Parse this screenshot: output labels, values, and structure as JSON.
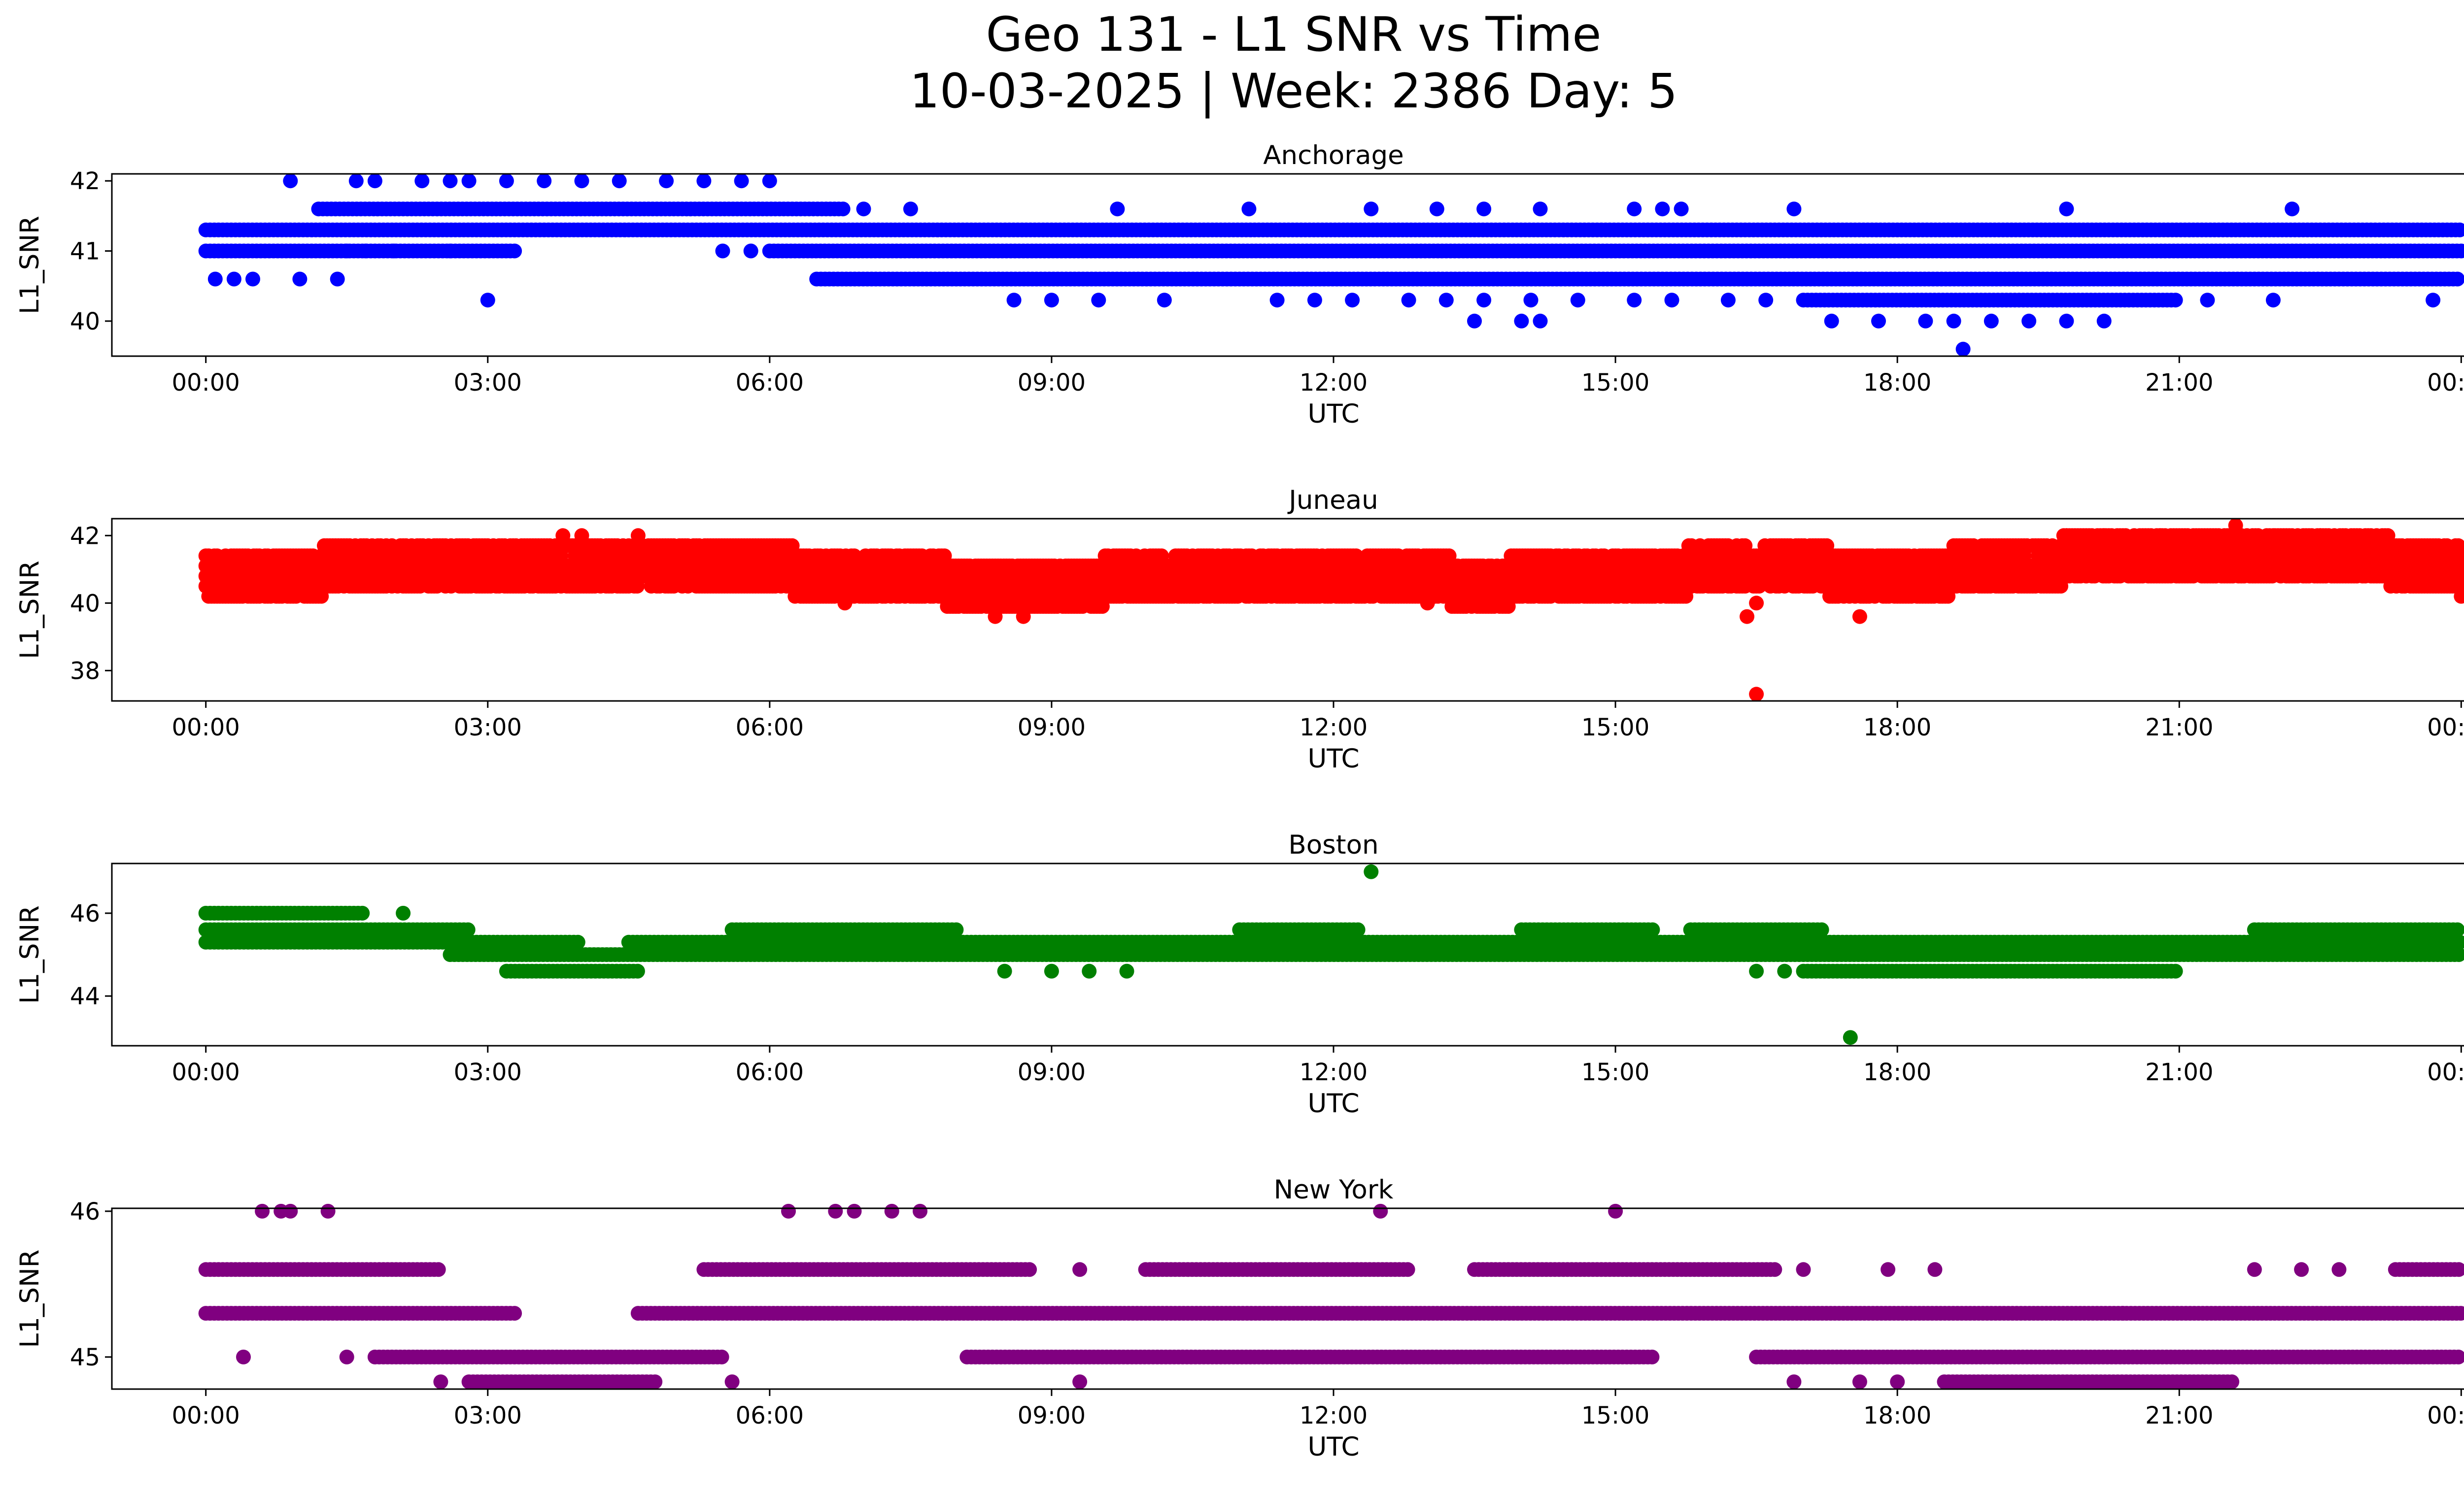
{
  "figure": {
    "title_line1": "Geo 131 - L1 SNR vs Time",
    "title_line2": "10-03-2025 | Week: 2386 Day: 5"
  },
  "chart_data": [
    {
      "type": "scatter",
      "title": "Anchorage",
      "xlabel": "UTC",
      "ylabel": "L1_SNR",
      "color": "#0000ff",
      "xlim": [
        -1.0,
        25.0
      ],
      "ylim": [
        39.5,
        42.1
      ],
      "yticks": [
        40,
        41,
        42
      ],
      "ytick_labels": [
        "40",
        "41",
        "42"
      ],
      "xticks": [
        0,
        3,
        6,
        9,
        12,
        15,
        18,
        21,
        24
      ],
      "xtick_labels": [
        "00:00",
        "03:00",
        "06:00",
        "09:00",
        "12:00",
        "15:00",
        "18:00",
        "21:00",
        "00:00"
      ],
      "bands": [
        {
          "y": 41.3,
          "x0": 0.0,
          "x1": 24.0
        },
        {
          "y": 41.0,
          "x0": 0.0,
          "x1": 3.3
        },
        {
          "y": 41.6,
          "x0": 1.2,
          "x1": 6.8
        },
        {
          "y": 41.0,
          "x0": 6.0,
          "x1": 24.0
        },
        {
          "y": 40.6,
          "x0": 6.5,
          "x1": 24.0
        },
        {
          "y": 40.3,
          "x0": 17.0,
          "x1": 21.0
        }
      ],
      "points": [
        [
          0.9,
          42.0
        ],
        [
          1.6,
          42.0
        ],
        [
          1.8,
          42.0
        ],
        [
          2.3,
          42.0
        ],
        [
          2.6,
          42.0
        ],
        [
          2.8,
          42.0
        ],
        [
          3.2,
          42.0
        ],
        [
          3.6,
          42.0
        ],
        [
          4.0,
          42.0
        ],
        [
          4.4,
          42.0
        ],
        [
          4.9,
          42.0
        ],
        [
          5.3,
          42.0
        ],
        [
          5.7,
          42.0
        ],
        [
          6.0,
          42.0
        ],
        [
          0.1,
          40.6
        ],
        [
          0.3,
          40.6
        ],
        [
          0.5,
          40.6
        ],
        [
          1.0,
          40.6
        ],
        [
          1.4,
          40.6
        ],
        [
          3.0,
          40.3
        ],
        [
          1.5,
          41.0
        ],
        [
          1.7,
          41.0
        ],
        [
          2.0,
          41.0
        ],
        [
          2.6,
          41.0
        ],
        [
          5.5,
          41.0
        ],
        [
          5.8,
          41.0
        ],
        [
          7.0,
          41.6
        ],
        [
          7.5,
          41.6
        ],
        [
          9.7,
          41.6
        ],
        [
          11.1,
          41.6
        ],
        [
          12.4,
          41.6
        ],
        [
          13.1,
          41.6
        ],
        [
          13.6,
          41.6
        ],
        [
          14.2,
          41.6
        ],
        [
          15.2,
          41.6
        ],
        [
          15.5,
          41.6
        ],
        [
          15.7,
          41.6
        ],
        [
          16.9,
          41.6
        ],
        [
          19.8,
          41.6
        ],
        [
          22.2,
          41.6
        ],
        [
          8.6,
          40.3
        ],
        [
          9.0,
          40.3
        ],
        [
          9.5,
          40.3
        ],
        [
          10.2,
          40.3
        ],
        [
          11.4,
          40.3
        ],
        [
          11.8,
          40.3
        ],
        [
          12.2,
          40.3
        ],
        [
          12.8,
          40.3
        ],
        [
          13.2,
          40.3
        ],
        [
          13.6,
          40.3
        ],
        [
          14.1,
          40.3
        ],
        [
          14.6,
          40.3
        ],
        [
          15.2,
          40.3
        ],
        [
          15.6,
          40.3
        ],
        [
          16.2,
          40.3
        ],
        [
          16.6,
          40.3
        ],
        [
          21.3,
          40.3
        ],
        [
          22.0,
          40.3
        ],
        [
          23.7,
          40.3
        ],
        [
          13.5,
          40.0
        ],
        [
          14.0,
          40.0
        ],
        [
          14.2,
          40.0
        ],
        [
          17.3,
          40.0
        ],
        [
          17.8,
          40.0
        ],
        [
          18.3,
          40.0
        ],
        [
          18.6,
          40.0
        ],
        [
          19.0,
          40.0
        ],
        [
          19.4,
          40.0
        ],
        [
          19.8,
          40.0
        ],
        [
          20.2,
          40.0
        ],
        [
          18.7,
          39.6
        ]
      ]
    },
    {
      "type": "scatter",
      "title": "Juneau",
      "xlabel": "UTC",
      "ylabel": "L1_SNR",
      "color": "#ff0000",
      "xlim": [
        -1.0,
        25.0
      ],
      "ylim": [
        37.1,
        42.5
      ],
      "yticks": [
        38,
        40,
        42
      ],
      "ytick_labels": [
        "38",
        "40",
        "42"
      ],
      "xticks": [
        0,
        3,
        6,
        9,
        12,
        15,
        18,
        21,
        24
      ],
      "xtick_labels": [
        "00:00",
        "03:00",
        "06:00",
        "09:00",
        "12:00",
        "15:00",
        "18:00",
        "21:00",
        "00:00"
      ],
      "segments": [
        [
          0.0,
          40.7
        ],
        [
          1.5,
          41.0
        ],
        [
          3.0,
          41.2
        ],
        [
          4.5,
          41.2
        ],
        [
          6.0,
          41.0
        ],
        [
          7.5,
          40.7
        ],
        [
          9.0,
          40.5
        ],
        [
          10.5,
          40.9
        ],
        [
          12.0,
          40.9
        ],
        [
          13.5,
          40.6
        ],
        [
          15.0,
          40.8
        ],
        [
          16.5,
          41.1
        ],
        [
          18.0,
          40.8
        ],
        [
          19.5,
          41.2
        ],
        [
          21.0,
          41.5
        ],
        [
          22.5,
          41.5
        ],
        [
          24.0,
          41.0
        ]
      ],
      "points": [
        [
          3.8,
          42.0
        ],
        [
          4.0,
          42.0
        ],
        [
          4.6,
          42.0
        ],
        [
          19.8,
          42.0
        ],
        [
          20.2,
          42.0
        ],
        [
          20.8,
          42.0
        ],
        [
          21.6,
          42.3
        ],
        [
          22.0,
          42.0
        ],
        [
          22.5,
          42.0
        ],
        [
          16.4,
          39.6
        ],
        [
          16.5,
          40.0
        ],
        [
          17.6,
          39.6
        ],
        [
          8.4,
          39.6
        ],
        [
          8.7,
          39.6
        ],
        [
          6.8,
          40.0
        ],
        [
          9.5,
          40.0
        ],
        [
          13.0,
          40.0
        ],
        [
          13.4,
          40.0
        ],
        [
          16.5,
          37.3
        ]
      ]
    },
    {
      "type": "scatter",
      "title": "Boston",
      "xlabel": "UTC",
      "ylabel": "L1_SNR",
      "color": "#008000",
      "xlim": [
        -1.0,
        25.0
      ],
      "ylim": [
        42.8,
        47.2
      ],
      "yticks": [
        44,
        46
      ],
      "ytick_labels": [
        "44",
        "46"
      ],
      "xticks": [
        0,
        3,
        6,
        9,
        12,
        15,
        18,
        21,
        24
      ],
      "xtick_labels": [
        "00:00",
        "03:00",
        "06:00",
        "09:00",
        "12:00",
        "15:00",
        "18:00",
        "21:00",
        "00:00"
      ],
      "bands": [
        {
          "y": 46.0,
          "x0": 0.0,
          "x1": 1.7
        },
        {
          "y": 45.6,
          "x0": 0.0,
          "x1": 2.8
        },
        {
          "y": 45.3,
          "x0": 0.0,
          "x1": 4.0
        },
        {
          "y": 45.0,
          "x0": 2.6,
          "x1": 24.0
        },
        {
          "y": 45.3,
          "x0": 4.5,
          "x1": 24.0
        },
        {
          "y": 44.6,
          "x0": 3.2,
          "x1": 4.6
        },
        {
          "y": 45.6,
          "x0": 5.6,
          "x1": 8.0
        },
        {
          "y": 45.6,
          "x0": 11.0,
          "x1": 12.3
        },
        {
          "y": 45.6,
          "x0": 14.0,
          "x1": 15.4
        },
        {
          "y": 45.6,
          "x0": 15.8,
          "x1": 17.2
        },
        {
          "y": 44.6,
          "x0": 17.0,
          "x1": 21.0
        },
        {
          "y": 45.6,
          "x0": 21.8,
          "x1": 24.0
        }
      ],
      "points": [
        [
          2.1,
          46.0
        ],
        [
          8.5,
          44.6
        ],
        [
          9.0,
          44.6
        ],
        [
          9.4,
          44.6
        ],
        [
          9.8,
          44.6
        ],
        [
          16.5,
          44.6
        ],
        [
          16.8,
          44.6
        ],
        [
          12.4,
          47.0
        ],
        [
          17.5,
          43.0
        ]
      ]
    },
    {
      "type": "scatter",
      "title": "New York",
      "xlabel": "UTC",
      "ylabel": "L1_SNR",
      "color": "#800080",
      "xlim": [
        -1.0,
        25.0
      ],
      "ylim": [
        44.78,
        46.02
      ],
      "yticks": [
        45,
        46
      ],
      "ytick_labels": [
        "45",
        "46"
      ],
      "xticks": [
        0,
        3,
        6,
        9,
        12,
        15,
        18,
        21,
        24
      ],
      "xtick_labels": [
        "00:00",
        "03:00",
        "06:00",
        "09:00",
        "12:00",
        "15:00",
        "18:00",
        "21:00",
        "00:00"
      ],
      "bands": [
        {
          "y": 45.6,
          "x0": 0.0,
          "x1": 2.5
        },
        {
          "y": 45.3,
          "x0": 0.0,
          "x1": 3.3
        },
        {
          "y": 45.3,
          "x0": 4.6,
          "x1": 24.0
        },
        {
          "y": 45.0,
          "x0": 1.8,
          "x1": 5.5
        },
        {
          "y": 44.83,
          "x0": 2.8,
          "x1": 4.8
        },
        {
          "y": 45.6,
          "x0": 5.3,
          "x1": 8.8
        },
        {
          "y": 45.6,
          "x0": 10.0,
          "x1": 12.8
        },
        {
          "y": 45.6,
          "x0": 13.5,
          "x1": 16.7
        },
        {
          "y": 45.0,
          "x0": 8.1,
          "x1": 15.4
        },
        {
          "y": 45.0,
          "x0": 16.5,
          "x1": 24.0
        },
        {
          "y": 44.83,
          "x0": 18.5,
          "x1": 21.6
        },
        {
          "y": 45.6,
          "x0": 23.3,
          "x1": 24.0
        }
      ],
      "points": [
        [
          0.6,
          46.0
        ],
        [
          0.8,
          46.0
        ],
        [
          0.9,
          46.0
        ],
        [
          1.3,
          46.0
        ],
        [
          6.2,
          46.0
        ],
        [
          6.7,
          46.0
        ],
        [
          6.9,
          46.0
        ],
        [
          7.3,
          46.0
        ],
        [
          7.6,
          46.0
        ],
        [
          12.5,
          46.0
        ],
        [
          15.0,
          46.0
        ],
        [
          0.4,
          45.0
        ],
        [
          1.5,
          45.0
        ],
        [
          2.5,
          44.83
        ],
        [
          5.6,
          44.83
        ],
        [
          9.3,
          44.83
        ],
        [
          16.9,
          44.83
        ],
        [
          17.6,
          44.83
        ],
        [
          18.0,
          44.83
        ],
        [
          17.0,
          45.6
        ],
        [
          17.9,
          45.6
        ],
        [
          18.4,
          45.6
        ],
        [
          9.3,
          45.6
        ],
        [
          20.4,
          45.3
        ],
        [
          21.8,
          45.6
        ],
        [
          22.3,
          45.6
        ],
        [
          22.7,
          45.6
        ]
      ]
    }
  ]
}
